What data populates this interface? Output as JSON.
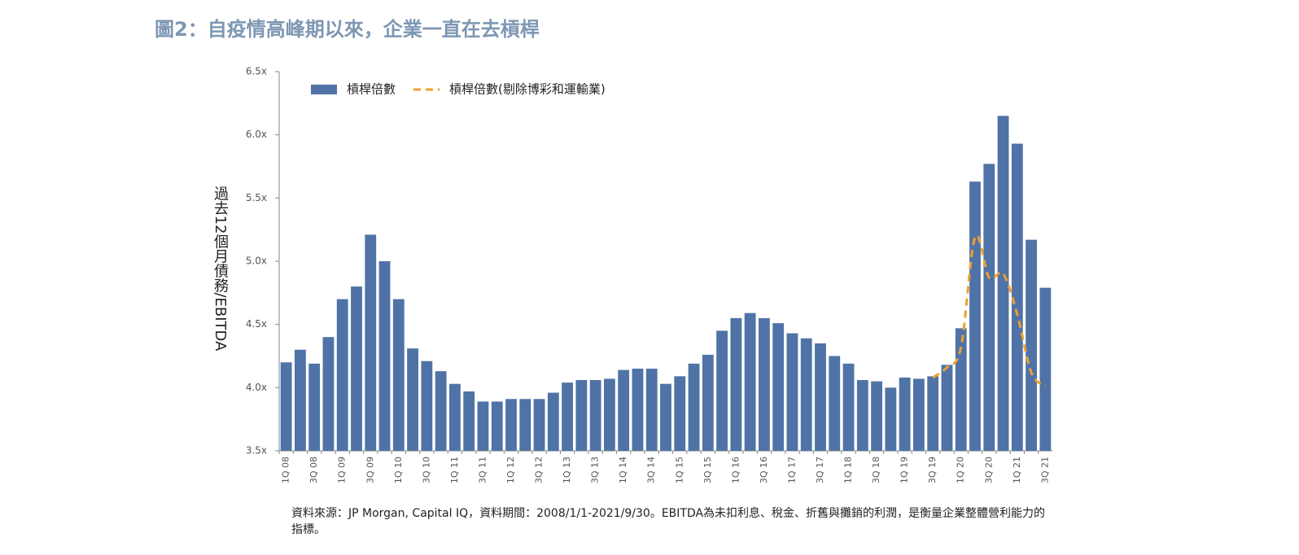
{
  "chart_data": {
    "type": "bar",
    "title": "圖2：自疫情高峰期以來，企業一直在去槓桿",
    "y_label": "過去12個月債務/EBITDA",
    "note": "資料來源：JP Morgan, Capital IQ，資料期間：2008/1/1-2021/9/30。EBITDA為未扣利息、稅金、折舊與攤銷的利潤，是衡量企業整體營利能力的指標。",
    "categories": [
      "1Q 08",
      null,
      "3Q 08",
      null,
      "1Q 09",
      null,
      "3Q 09",
      null,
      "1Q 10",
      null,
      "3Q 10",
      null,
      "1Q 11",
      null,
      "3Q 11",
      null,
      "1Q 12",
      null,
      "3Q 12",
      null,
      "1Q 13",
      null,
      "3Q 13",
      null,
      "1Q 14",
      null,
      "3Q 14",
      null,
      "1Q 15",
      null,
      "3Q 15",
      null,
      "1Q 16",
      null,
      "3Q 16",
      null,
      "1Q 17",
      null,
      "3Q 17",
      null,
      "1Q 18",
      null,
      "3Q 18",
      null,
      "1Q 19",
      null,
      "3Q 19",
      null,
      "1Q 20",
      null,
      "3Q 20",
      null,
      "1Q 21",
      null,
      "3Q 21"
    ],
    "series": [
      {
        "name": "槓桿倍數",
        "type": "bar",
        "color": "#4f73a6",
        "values": [
          4.2,
          4.3,
          4.19,
          4.4,
          4.7,
          4.8,
          5.21,
          5.0,
          4.7,
          4.31,
          4.21,
          4.13,
          4.03,
          3.97,
          3.89,
          3.89,
          3.91,
          3.91,
          3.91,
          3.96,
          4.04,
          4.06,
          4.06,
          4.07,
          4.14,
          4.15,
          4.15,
          4.03,
          4.09,
          4.19,
          4.26,
          4.45,
          4.55,
          4.59,
          4.55,
          4.51,
          4.43,
          4.39,
          4.35,
          4.25,
          4.19,
          4.06,
          4.05,
          4.0,
          4.08,
          4.07,
          4.09,
          4.18,
          4.47,
          5.63,
          5.77,
          6.15,
          5.93,
          5.17,
          4.79
        ]
      },
      {
        "name": "槓桿倍數(剔除博彩和運輸業)",
        "type": "line",
        "color": "#f0a030",
        "values": [
          null,
          null,
          null,
          null,
          null,
          null,
          null,
          null,
          null,
          null,
          null,
          null,
          null,
          null,
          null,
          null,
          null,
          null,
          null,
          null,
          null,
          null,
          null,
          null,
          null,
          null,
          null,
          null,
          null,
          null,
          null,
          null,
          null,
          null,
          null,
          null,
          null,
          null,
          null,
          null,
          null,
          null,
          null,
          null,
          null,
          null,
          4.08,
          4.16,
          4.32,
          5.19,
          4.87,
          4.9,
          4.58,
          4.12,
          4.01
        ]
      }
    ],
    "ylim": [
      3.5,
      6.5
    ],
    "yticks": [
      {
        "value": 3.5,
        "label": "3.5x"
      },
      {
        "value": 4.0,
        "label": "4.0x"
      },
      {
        "value": 4.5,
        "label": "4.5x"
      },
      {
        "value": 5.0,
        "label": "5.0x"
      },
      {
        "value": 5.5,
        "label": "5.5x"
      },
      {
        "value": 6.0,
        "label": "6.0x"
      },
      {
        "value": 6.5,
        "label": "6.5x"
      }
    ],
    "legend": "top-left"
  }
}
